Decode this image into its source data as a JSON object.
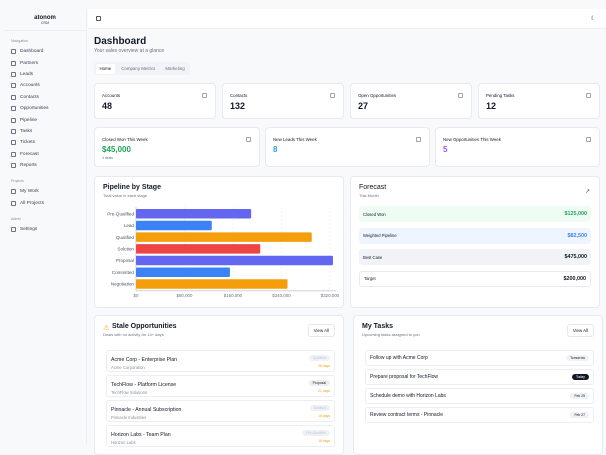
{
  "brand": {
    "name": "atonom",
    "sub": "CRM"
  },
  "sidebar": {
    "sections": [
      {
        "title": "Navigation",
        "items": [
          "Dashboard",
          "Partners",
          "Leads",
          "Accounts",
          "Contacts",
          "Opportunities",
          "Pipeline",
          "Tasks",
          "Tickets",
          "Forecast",
          "Reports"
        ]
      },
      {
        "title": "Projects",
        "items": [
          "My Work",
          "All Projects"
        ]
      },
      {
        "title": "Admin",
        "items": [
          "Settings"
        ]
      }
    ]
  },
  "header": {
    "title": "Dashboard",
    "subtitle": "Your sales overview at a glance"
  },
  "tabs": [
    {
      "label": "Home",
      "active": true
    },
    {
      "label": "Company Metrics"
    },
    {
      "label": "Marketing"
    }
  ],
  "stats": [
    {
      "label": "Accounts",
      "value": "48",
      "icon": "building-icon"
    },
    {
      "label": "Contacts",
      "value": "132",
      "icon": "users-icon"
    },
    {
      "label": "Open Opportunities",
      "value": "27",
      "icon": "target-icon"
    },
    {
      "label": "Pending Tasks",
      "value": "12",
      "icon": "calendar-icon"
    }
  ],
  "weekly": [
    {
      "label": "Closed Won This Week",
      "value": "$45,000",
      "note": "3 deals",
      "color": "#22a55b",
      "icon": "trophy-icon"
    },
    {
      "label": "New Leads This Week",
      "value": "8",
      "color": "#3b9bdc",
      "icon": "user-plus-icon"
    },
    {
      "label": "New Opportunities This Week",
      "value": "5",
      "color": "#a855f7",
      "icon": "rocket-icon"
    }
  ],
  "pipeline": {
    "title": "Pipeline by Stage",
    "subtitle": "Total value in each stage"
  },
  "chart_data": {
    "type": "bar",
    "orientation": "horizontal",
    "categories": [
      "Pre-Qualified",
      "Lead",
      "Qualified",
      "Solution",
      "Proposal",
      "Committed",
      "Negotiation"
    ],
    "values": [
      190000,
      125000,
      290000,
      205000,
      325000,
      155000,
      250000
    ],
    "colors": [
      "#6366f1",
      "#3b82f6",
      "#f59e0b",
      "#ef4444",
      "#6366f1",
      "#3b82f6",
      "#f59e0b"
    ],
    "xticks": [
      "$0",
      "$80,000",
      "$160,000",
      "$240,000",
      "$320,000"
    ],
    "xtick_values": [
      0,
      80000,
      160000,
      240000,
      320000
    ],
    "xlim": [
      0,
      330000
    ],
    "grid": true
  },
  "forecast": {
    "title": "Forecast",
    "subtitle": "This Month",
    "rows": [
      {
        "label": "Closed Won",
        "value": "$125,000",
        "bg": "#effcf3",
        "color": "#22a55b"
      },
      {
        "label": "Weighted Pipeline",
        "value": "$82,500",
        "bg": "#eff5ff",
        "color": "#3b82f6"
      },
      {
        "label": "Best Case",
        "value": "$475,000",
        "bg": "#f1f3f6",
        "color": "#111827"
      },
      {
        "label": "Target",
        "value": "$200,000",
        "bg": "#ffffff",
        "color": "#111827"
      }
    ]
  },
  "stale": {
    "title": "Stale Opportunities",
    "subtitle": "Deals with no activity for 14+ days",
    "view_all": "View All",
    "items": [
      {
        "name": "Acme Corp - Enterprise Plan",
        "account": "Acme Corporation",
        "stage": "Qualified",
        "days": "28 days"
      },
      {
        "name": "TechFlow - Platform License",
        "account": "TechFlow Solutions",
        "stage": "Proposal",
        "days": "21 days"
      },
      {
        "name": "Pinnacle - Annual Subscription",
        "account": "Pinnacle Industries",
        "stage": "Solution",
        "days": "18 days"
      },
      {
        "name": "Horizon Labs - Team Plan",
        "account": "Horizon Labs",
        "stage": "Pre-Qualified",
        "days": "16 days"
      }
    ]
  },
  "tasks": {
    "title": "My Tasks",
    "subtitle": "Upcoming tasks assigned to you",
    "view_all": "View All",
    "items": [
      {
        "title": "Follow up with Acme Corp",
        "due": "Tomorrow"
      },
      {
        "title": "Prepare proposal for TechFlow",
        "due": "Today"
      },
      {
        "title": "Schedule demo with Horizon Labs",
        "due": "Feb 25"
      },
      {
        "title": "Review contract terms - Pinnacle",
        "due": "Feb 27"
      }
    ]
  }
}
